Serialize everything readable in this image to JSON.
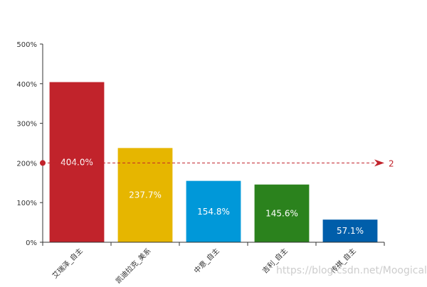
{
  "chart_data": {
    "type": "bar",
    "title": "",
    "xlabel": "",
    "ylabel": "",
    "ylim": [
      0,
      500
    ],
    "yticks": [
      0,
      100,
      200,
      300,
      400,
      500
    ],
    "ytick_labels": [
      "0%",
      "100%",
      "200%",
      "300%",
      "400%",
      "500%"
    ],
    "grid": false,
    "categories": [
      "艾瑞泽_自主",
      "凯迪拉克_美系",
      "中意_自主",
      "吉利_自主",
      "传祺_自主"
    ],
    "values": [
      404.0,
      237.7,
      154.8,
      145.6,
      57.1
    ],
    "value_labels": [
      "404.0%",
      "237.7%",
      "154.8%",
      "145.6%",
      "57.1%"
    ],
    "colors": [
      "#C1232B",
      "#E6B600",
      "#0098D9",
      "#2B821D",
      "#005EAA"
    ],
    "markline": {
      "value": 200,
      "label": "2",
      "color": "#C1232B"
    }
  },
  "watermark": "https://blog.csdn.net/Moogical"
}
